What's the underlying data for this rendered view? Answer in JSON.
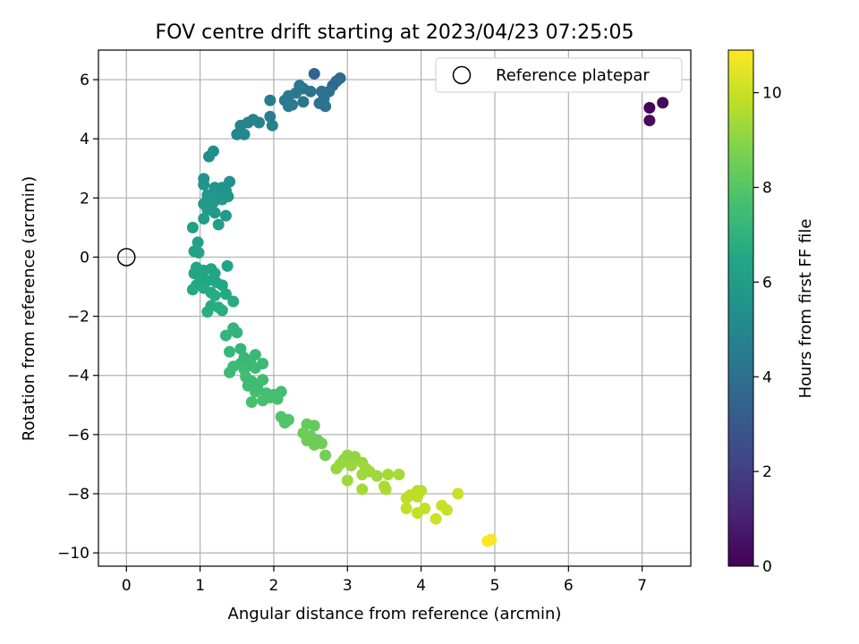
{
  "chart_data": {
    "type": "scatter",
    "title": "FOV centre drift starting at 2023/04/23 07:25:05",
    "xlabel": "Angular distance from reference (arcmin)",
    "ylabel": "Rotation from reference (arcmin)",
    "xlim": [
      -0.38,
      7.66
    ],
    "ylim": [
      -10.45,
      7.0
    ],
    "xticks": [
      0,
      1,
      2,
      3,
      4,
      5,
      6,
      7
    ],
    "yticks": [
      -10,
      -8,
      -6,
      -4,
      -2,
      0,
      2,
      4,
      6
    ],
    "grid": true,
    "legend": {
      "position": "top-right",
      "label": "Reference platepar"
    },
    "reference_point": {
      "x": 0,
      "y": 0
    },
    "colorbar": {
      "label": "Hours from first FF file",
      "range": [
        0,
        10.9
      ],
      "ticks": [
        0,
        2,
        4,
        6,
        8,
        10
      ],
      "colormap": "viridis"
    },
    "points": [
      [
        7.1,
        5.05,
        0.1
      ],
      [
        7.28,
        5.22,
        0.2
      ],
      [
        7.1,
        4.62,
        0.3
      ],
      [
        2.55,
        6.2,
        3.5
      ],
      [
        2.9,
        6.05,
        3.8
      ],
      [
        2.85,
        5.95,
        3.9
      ],
      [
        2.8,
        5.8,
        3.7
      ],
      [
        2.75,
        5.6,
        4.0
      ],
      [
        2.65,
        5.6,
        4.0
      ],
      [
        2.68,
        5.35,
        4.1
      ],
      [
        2.62,
        5.2,
        4.2
      ],
      [
        2.7,
        5.1,
        4.1
      ],
      [
        2.5,
        5.6,
        4.2
      ],
      [
        2.4,
        5.7,
        4.2
      ],
      [
        2.35,
        5.8,
        4.3
      ],
      [
        2.3,
        5.55,
        4.3
      ],
      [
        2.2,
        5.45,
        4.4
      ],
      [
        2.15,
        5.3,
        4.4
      ],
      [
        2.25,
        5.15,
        4.4
      ],
      [
        2.4,
        5.25,
        4.3
      ],
      [
        2.2,
        5.1,
        4.5
      ],
      [
        1.95,
        5.3,
        4.5
      ],
      [
        1.95,
        4.75,
        4.6
      ],
      [
        1.98,
        4.45,
        4.7
      ],
      [
        1.8,
        4.55,
        4.8
      ],
      [
        1.72,
        4.65,
        4.8
      ],
      [
        1.65,
        4.55,
        4.8
      ],
      [
        1.55,
        4.45,
        4.9
      ],
      [
        1.6,
        4.15,
        5.0
      ],
      [
        1.5,
        4.15,
        5.0
      ],
      [
        1.18,
        3.58,
        5.3
      ],
      [
        1.12,
        3.4,
        5.4
      ],
      [
        1.05,
        2.65,
        5.5
      ],
      [
        1.4,
        2.55,
        5.5
      ],
      [
        1.05,
        2.45,
        5.6
      ],
      [
        1.2,
        2.35,
        5.6
      ],
      [
        1.35,
        2.25,
        5.7
      ],
      [
        1.3,
        2.35,
        5.6
      ],
      [
        1.1,
        2.1,
        5.7
      ],
      [
        1.25,
        2.05,
        5.7
      ],
      [
        1.38,
        2.05,
        5.7
      ],
      [
        1.3,
        1.95,
        5.8
      ],
      [
        1.18,
        1.85,
        5.8
      ],
      [
        1.05,
        1.8,
        5.8
      ],
      [
        1.1,
        1.6,
        5.9
      ],
      [
        1.35,
        1.4,
        5.9
      ],
      [
        1.2,
        1.5,
        5.9
      ],
      [
        1.05,
        1.3,
        6.0
      ],
      [
        0.9,
        1.0,
        6.1
      ],
      [
        1.25,
        1.1,
        6.1
      ],
      [
        0.97,
        0.5,
        6.2
      ],
      [
        0.92,
        0.2,
        6.2
      ],
      [
        0.98,
        0.15,
        6.3
      ],
      [
        1.37,
        -0.3,
        6.3
      ],
      [
        0.95,
        -0.35,
        6.4
      ],
      [
        1.05,
        -0.45,
        6.4
      ],
      [
        1.15,
        -0.4,
        6.4
      ],
      [
        1.2,
        -0.55,
        6.4
      ],
      [
        0.92,
        -0.55,
        6.4
      ],
      [
        1.0,
        -0.7,
        6.5
      ],
      [
        1.1,
        -0.8,
        6.5
      ],
      [
        1.22,
        -0.85,
        6.5
      ],
      [
        1.3,
        -0.95,
        6.5
      ],
      [
        0.95,
        -0.95,
        6.5
      ],
      [
        1.05,
        -1.05,
        6.6
      ],
      [
        0.9,
        -1.1,
        6.6
      ],
      [
        1.15,
        -1.2,
        6.6
      ],
      [
        1.35,
        -1.25,
        6.6
      ],
      [
        1.2,
        -1.3,
        6.7
      ],
      [
        1.45,
        -1.5,
        6.7
      ],
      [
        1.15,
        -1.65,
        6.7
      ],
      [
        1.25,
        -1.7,
        6.8
      ],
      [
        1.3,
        -1.8,
        6.8
      ],
      [
        1.1,
        -1.85,
        6.8
      ],
      [
        1.45,
        -2.4,
        7.1
      ],
      [
        1.5,
        -2.55,
        7.1
      ],
      [
        1.35,
        -2.65,
        7.1
      ],
      [
        1.55,
        -3.1,
        7.2
      ],
      [
        1.4,
        -3.2,
        7.2
      ],
      [
        1.6,
        -3.4,
        7.3
      ],
      [
        1.75,
        -3.3,
        7.3
      ],
      [
        1.55,
        -3.6,
        7.3
      ],
      [
        1.68,
        -3.55,
        7.3
      ],
      [
        1.85,
        -3.6,
        7.4
      ],
      [
        1.45,
        -3.7,
        7.4
      ],
      [
        1.6,
        -3.8,
        7.4
      ],
      [
        1.75,
        -3.75,
        7.4
      ],
      [
        1.4,
        -3.9,
        7.4
      ],
      [
        1.62,
        -4.05,
        7.5
      ],
      [
        1.7,
        -4.2,
        7.5
      ],
      [
        1.85,
        -4.15,
        7.5
      ],
      [
        1.78,
        -4.4,
        7.5
      ],
      [
        1.65,
        -4.35,
        7.5
      ],
      [
        1.75,
        -4.55,
        7.6
      ],
      [
        1.9,
        -4.6,
        7.6
      ],
      [
        2.0,
        -4.65,
        7.6
      ],
      [
        2.1,
        -4.55,
        7.6
      ],
      [
        1.7,
        -4.9,
        7.7
      ],
      [
        1.85,
        -4.85,
        7.7
      ],
      [
        2.05,
        -4.8,
        7.7
      ],
      [
        1.95,
        -4.75,
        7.7
      ],
      [
        2.1,
        -5.4,
        7.9
      ],
      [
        2.15,
        -5.6,
        7.9
      ],
      [
        2.2,
        -5.5,
        7.9
      ],
      [
        2.45,
        -5.65,
        8.3
      ],
      [
        2.55,
        -5.7,
        8.3
      ],
      [
        2.4,
        -5.95,
        8.4
      ],
      [
        2.5,
        -6.05,
        8.4
      ],
      [
        2.6,
        -6.2,
        8.4
      ],
      [
        2.45,
        -6.2,
        8.5
      ],
      [
        2.65,
        -6.3,
        8.5
      ],
      [
        2.55,
        -6.35,
        8.5
      ],
      [
        2.7,
        -6.7,
        8.6
      ],
      [
        3.0,
        -6.7,
        9.1
      ],
      [
        3.1,
        -6.75,
        9.1
      ],
      [
        2.95,
        -6.85,
        9.1
      ],
      [
        2.9,
        -7.0,
        9.2
      ],
      [
        3.2,
        -6.95,
        9.2
      ],
      [
        3.05,
        -7.05,
        9.2
      ],
      [
        3.25,
        -7.15,
        9.3
      ],
      [
        2.85,
        -7.15,
        9.2
      ],
      [
        3.3,
        -7.25,
        9.3
      ],
      [
        3.2,
        -7.35,
        9.3
      ],
      [
        3.4,
        -7.4,
        9.3
      ],
      [
        3.55,
        -7.35,
        9.4
      ],
      [
        3.7,
        -7.35,
        9.4
      ],
      [
        3.0,
        -7.55,
        9.3
      ],
      [
        3.2,
        -7.85,
        9.4
      ],
      [
        3.5,
        -7.75,
        9.5
      ],
      [
        3.52,
        -7.85,
        9.5
      ],
      [
        3.95,
        -7.9,
        9.7
      ],
      [
        4.0,
        -7.9,
        9.7
      ],
      [
        3.85,
        -8.05,
        9.8
      ],
      [
        3.8,
        -8.15,
        9.8
      ],
      [
        3.95,
        -8.1,
        9.8
      ],
      [
        4.5,
        -8.0,
        10.0
      ],
      [
        3.8,
        -8.5,
        9.9
      ],
      [
        3.95,
        -8.65,
        9.9
      ],
      [
        4.05,
        -8.5,
        9.9
      ],
      [
        4.28,
        -8.4,
        10.0
      ],
      [
        4.35,
        -8.55,
        10.0
      ],
      [
        4.2,
        -8.85,
        10.1
      ],
      [
        4.95,
        -9.55,
        10.8
      ],
      [
        4.9,
        -9.6,
        10.9
      ]
    ]
  }
}
